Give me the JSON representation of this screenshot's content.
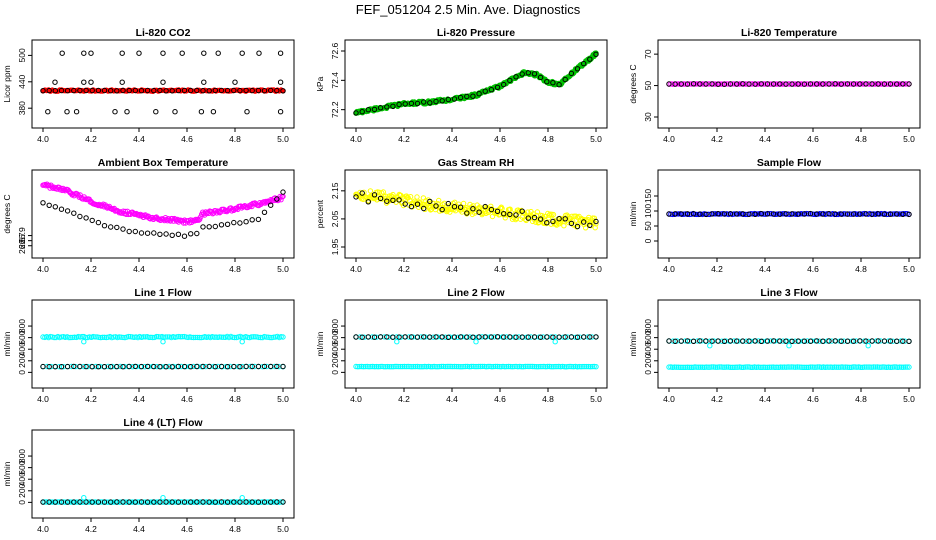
{
  "figure": {
    "title": "FEF_051204  2.5 Min. Ave. Diagnostics"
  },
  "chart_data": [
    {
      "id": "co2",
      "type": "scatter",
      "title": "Li-820 CO2",
      "ylabel": "Licor ppm",
      "xlim": [
        4.0,
        5.0
      ],
      "ylim": [
        360,
        510
      ],
      "xticks": [
        "4.0",
        "4.2",
        "4.4",
        "4.6",
        "4.8",
        "5.0"
      ],
      "yticks": [
        "380",
        "440",
        "500"
      ],
      "series": [
        {
          "name": "co2-red",
          "color": "#ff0000",
          "pattern": "flat",
          "value": 420,
          "spread": 1.5,
          "count": 130,
          "start": 4.0,
          "end": 5.0,
          "filled": true
        },
        {
          "name": "co2-black-low",
          "color": "#000000",
          "pattern": "flat",
          "value": 420,
          "spread": 0.5,
          "count": 40,
          "start": 4.0,
          "end": 5.0
        },
        {
          "name": "co2-outliers-high",
          "color": "#000000",
          "pattern": "points",
          "x": [
            4.08,
            4.17,
            4.2,
            4.33,
            4.4,
            4.5,
            4.58,
            4.67,
            4.73,
            4.83,
            4.9,
            4.99
          ],
          "y": [
            505,
            505,
            505,
            505,
            505,
            505,
            505,
            505,
            505,
            505,
            505,
            505
          ]
        },
        {
          "name": "co2-outliers-mid",
          "color": "#000000",
          "pattern": "points",
          "x": [
            4.05,
            4.17,
            4.2,
            4.33,
            4.5,
            4.67,
            4.8,
            4.99
          ],
          "y": [
            439,
            439,
            439,
            439,
            439,
            439,
            439,
            439
          ]
        },
        {
          "name": "co2-outliers-low",
          "color": "#000000",
          "pattern": "points",
          "x": [
            4.02,
            4.1,
            4.14,
            4.3,
            4.35,
            4.47,
            4.55,
            4.66,
            4.71,
            4.85,
            4.99
          ],
          "y": [
            372,
            372,
            372,
            372,
            372,
            372,
            372,
            372,
            372,
            372,
            372
          ]
        }
      ]
    },
    {
      "id": "pressure",
      "type": "scatter",
      "title": "Li-820 Pressure",
      "ylabel": "kPa",
      "xlim": [
        4.0,
        5.0
      ],
      "ylim": [
        72.15,
        72.6
      ],
      "xticks": [
        "4.0",
        "4.2",
        "4.4",
        "4.6",
        "4.8",
        "5.0"
      ],
      "yticks": [
        "72.2",
        "72.4",
        "72.6"
      ],
      "series": [
        {
          "name": "pressure-green",
          "color": "#00c000",
          "pattern": "curve",
          "knots_x": [
            4.0,
            4.1,
            4.2,
            4.3,
            4.4,
            4.5,
            4.6,
            4.7,
            4.75,
            4.8,
            4.85,
            4.9,
            5.0
          ],
          "knots_y": [
            72.18,
            72.21,
            72.24,
            72.25,
            72.27,
            72.3,
            72.36,
            72.45,
            72.44,
            72.39,
            72.37,
            72.45,
            72.58
          ],
          "spread": 0.01,
          "count": 260,
          "start": 4.0,
          "end": 5.0,
          "filled": true
        },
        {
          "name": "pressure-black",
          "color": "#000000",
          "pattern": "curve",
          "knots_x": [
            4.0,
            4.1,
            4.2,
            4.3,
            4.4,
            4.5,
            4.6,
            4.7,
            4.75,
            4.8,
            4.85,
            4.9,
            5.0
          ],
          "knots_y": [
            72.18,
            72.21,
            72.24,
            72.25,
            72.27,
            72.3,
            72.36,
            72.45,
            72.44,
            72.39,
            72.37,
            72.45,
            72.58
          ],
          "spread": 0.005,
          "count": 40,
          "start": 4.0,
          "end": 5.0
        }
      ]
    },
    {
      "id": "temperature",
      "type": "scatter",
      "title": "Li-820 Temperature",
      "ylabel": "degrees C",
      "xlim": [
        4.0,
        5.0
      ],
      "ylim": [
        30,
        72
      ],
      "xticks": [
        "4.0",
        "4.2",
        "4.4",
        "4.6",
        "4.8",
        "5.0"
      ],
      "yticks": [
        "30",
        "50",
        "70"
      ],
      "series": [
        {
          "name": "temp-magenta",
          "color": "#ff00ff",
          "pattern": "flat",
          "value": 51,
          "spread": 0.1,
          "count": 130,
          "start": 4.0,
          "end": 5.0
        },
        {
          "name": "temp-black",
          "color": "#000000",
          "pattern": "flat",
          "value": 51,
          "spread": 0.1,
          "count": 40,
          "start": 4.0,
          "end": 5.0
        }
      ]
    },
    {
      "id": "ambient",
      "type": "scatter",
      "title": "Ambient Box Temperature",
      "ylabel": "degrees C",
      "xlim": [
        4.0,
        5.0
      ],
      "ylim": [
        26.45,
        29.05
      ],
      "xticks": [
        "4.0",
        "4.2",
        "4.4",
        "4.6",
        "4.8",
        "5.0"
      ],
      "yticks": [
        "26.5",
        "26.7",
        "26.9"
      ],
      "series": [
        {
          "name": "ambient-magenta",
          "color": "#ff00ff",
          "pattern": "curve",
          "knots_x": [
            4.0,
            4.1,
            4.2,
            4.3,
            4.4,
            4.5,
            4.6,
            4.65,
            4.66,
            4.8,
            4.9,
            5.0
          ],
          "knots_y": [
            28.9,
            28.65,
            28.25,
            27.9,
            27.7,
            27.55,
            27.45,
            27.55,
            27.75,
            27.95,
            28.15,
            28.4
          ],
          "spread": 0.07,
          "count": 240,
          "start": 4.0,
          "end": 5.0
        },
        {
          "name": "ambient-black",
          "color": "#000000",
          "pattern": "curve",
          "knots_x": [
            4.0,
            4.1,
            4.2,
            4.3,
            4.4,
            4.5,
            4.6,
            4.65,
            4.66,
            4.8,
            4.9,
            5.0
          ],
          "knots_y": [
            28.2,
            27.9,
            27.5,
            27.2,
            27.0,
            26.95,
            26.9,
            27.0,
            27.2,
            27.4,
            27.55,
            28.6
          ],
          "spread": 0.04,
          "count": 40,
          "start": 4.0,
          "end": 5.0
        }
      ]
    },
    {
      "id": "rh",
      "type": "scatter",
      "title": "Gas Stream RH",
      "ylabel": "percent",
      "xlim": [
        4.0,
        5.0
      ],
      "ylim": [
        1.95,
        2.185
      ],
      "xticks": [
        "4.0",
        "4.2",
        "4.4",
        "4.6",
        "4.8",
        "5.0"
      ],
      "yticks": [
        "1.95",
        "2.05",
        "2.15"
      ],
      "series": [
        {
          "name": "rh-yellow",
          "color": "#ffff00",
          "pattern": "curve",
          "knots_x": [
            4.0,
            4.2,
            4.4,
            4.6,
            4.8,
            5.0
          ],
          "knots_y": [
            2.14,
            2.115,
            2.09,
            2.075,
            2.05,
            2.035
          ],
          "spread": 0.02,
          "count": 300,
          "start": 4.0,
          "end": 5.0
        },
        {
          "name": "rh-black",
          "color": "#000000",
          "pattern": "curve",
          "knots_x": [
            4.0,
            4.2,
            4.4,
            4.6,
            4.8,
            5.0
          ],
          "knots_y": [
            2.13,
            2.11,
            2.09,
            2.075,
            2.05,
            2.03
          ],
          "spread": 0.015,
          "count": 40,
          "start": 4.0,
          "end": 5.0
        }
      ]
    },
    {
      "id": "sample",
      "type": "scatter",
      "title": "Sample Flow",
      "ylabel": "ml/min",
      "xlim": [
        4.0,
        5.0
      ],
      "ylim": [
        -20,
        200
      ],
      "xticks": [
        "4.0",
        "4.2",
        "4.4",
        "4.6",
        "4.8",
        "5.0"
      ],
      "yticks": [
        "0",
        "50",
        "100",
        "150"
      ],
      "series": [
        {
          "name": "sample-blue",
          "color": "#0000ff",
          "pattern": "flat",
          "value": 90,
          "spread": 1.5,
          "count": 130,
          "start": 4.0,
          "end": 5.0
        },
        {
          "name": "sample-black",
          "color": "#000000",
          "pattern": "flat",
          "value": 90,
          "spread": 1.0,
          "count": 40,
          "start": 4.0,
          "end": 5.0
        }
      ]
    },
    {
      "id": "line1",
      "type": "scatter",
      "title": "Line 1 Flow",
      "ylabel": "ml/min",
      "xlim": [
        4.0,
        5.0
      ],
      "ylim": [
        -80,
        1060
      ],
      "xticks": [
        "4.0",
        "4.2",
        "4.4",
        "4.6",
        "4.8",
        "5.0"
      ],
      "yticks": [
        "0",
        "200",
        "400",
        "600",
        "800"
      ],
      "series": [
        {
          "name": "line1-cyan-high",
          "color": "#00ffff",
          "pattern": "flat",
          "value": 610,
          "spread": 10,
          "count": 130,
          "start": 4.0,
          "end": 5.0
        },
        {
          "name": "line1-cyan-low",
          "color": "#00ffff",
          "pattern": "flat",
          "value": 100,
          "spread": 3,
          "count": 60,
          "start": 4.0,
          "end": 5.0
        },
        {
          "name": "line1-black",
          "color": "#000000",
          "pattern": "flat",
          "value": 100,
          "spread": 3,
          "count": 40,
          "start": 4.0,
          "end": 5.0
        },
        {
          "name": "line1-dips",
          "color": "#00ffff",
          "pattern": "points",
          "x": [
            4.17,
            4.5,
            4.83
          ],
          "y": [
            530,
            530,
            530
          ]
        }
      ]
    },
    {
      "id": "line2",
      "type": "scatter",
      "title": "Line 2 Flow",
      "ylabel": "ml/min",
      "xlim": [
        4.0,
        5.0
      ],
      "ylim": [
        -80,
        1060
      ],
      "xticks": [
        "4.0",
        "4.2",
        "4.4",
        "4.6",
        "4.8",
        "5.0"
      ],
      "yticks": [
        "0",
        "200",
        "400",
        "600",
        "800"
      ],
      "series": [
        {
          "name": "line2-cyan-low",
          "color": "#00ffff",
          "pattern": "flat",
          "value": 100,
          "spread": 3,
          "count": 130,
          "start": 4.0,
          "end": 5.0
        },
        {
          "name": "line2-cyan-high",
          "color": "#00ffff",
          "pattern": "flat",
          "value": 610,
          "spread": 4,
          "count": 60,
          "start": 4.0,
          "end": 5.0
        },
        {
          "name": "line2-black",
          "color": "#000000",
          "pattern": "flat",
          "value": 610,
          "spread": 4,
          "count": 40,
          "start": 4.0,
          "end": 5.0
        },
        {
          "name": "line2-dips",
          "color": "#00ffff",
          "pattern": "points",
          "x": [
            4.17,
            4.5,
            4.83
          ],
          "y": [
            530,
            530,
            530
          ]
        }
      ]
    },
    {
      "id": "line3",
      "type": "scatter",
      "title": "Line 3 Flow",
      "ylabel": "ml/min",
      "xlim": [
        4.0,
        5.0
      ],
      "ylim": [
        -80,
        1060
      ],
      "xticks": [
        "4.0",
        "4.2",
        "4.4",
        "4.6",
        "4.8",
        "5.0"
      ],
      "yticks": [
        "0",
        "200",
        "400",
        "600",
        "800"
      ],
      "series": [
        {
          "name": "line3-cyan-low",
          "color": "#00ffff",
          "pattern": "flat",
          "value": 90,
          "spread": 3,
          "count": 130,
          "start": 4.0,
          "end": 5.0
        },
        {
          "name": "line3-cyan-high",
          "color": "#00ffff",
          "pattern": "flat",
          "value": 540,
          "spread": 4,
          "count": 60,
          "start": 4.0,
          "end": 5.0
        },
        {
          "name": "line3-black",
          "color": "#000000",
          "pattern": "flat",
          "value": 540,
          "spread": 4,
          "count": 40,
          "start": 4.0,
          "end": 5.0
        },
        {
          "name": "line3-dips",
          "color": "#00ffff",
          "pattern": "points",
          "x": [
            4.17,
            4.5,
            4.83
          ],
          "y": [
            460,
            460,
            460
          ]
        }
      ]
    },
    {
      "id": "line4",
      "type": "scatter",
      "title": "Line 4 (LT) Flow",
      "ylabel": "ml/min",
      "xlim": [
        4.0,
        5.0
      ],
      "ylim": [
        -80,
        1060
      ],
      "xticks": [
        "4.0",
        "4.2",
        "4.4",
        "4.6",
        "4.8",
        "5.0"
      ],
      "yticks": [
        "0",
        "200",
        "400",
        "600",
        "800"
      ],
      "series": [
        {
          "name": "line4-cyan",
          "color": "#00ffff",
          "pattern": "flat",
          "value": 5,
          "spread": 2,
          "count": 130,
          "start": 4.0,
          "end": 5.0
        },
        {
          "name": "line4-black",
          "color": "#000000",
          "pattern": "flat",
          "value": 5,
          "spread": 1,
          "count": 40,
          "start": 4.0,
          "end": 5.0
        },
        {
          "name": "line4-spikes",
          "color": "#00ffff",
          "pattern": "points",
          "x": [
            4.17,
            4.5,
            4.83
          ],
          "y": [
            80,
            80,
            80
          ]
        }
      ]
    }
  ]
}
